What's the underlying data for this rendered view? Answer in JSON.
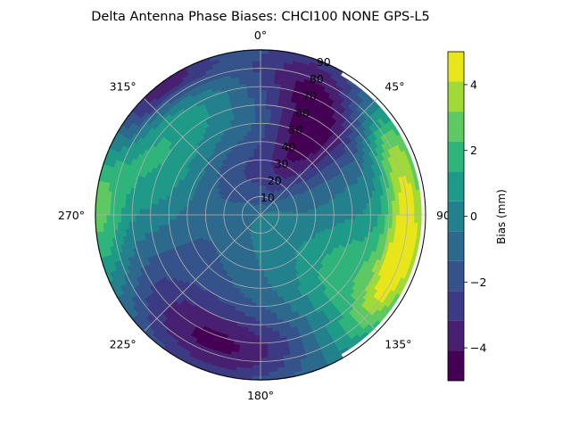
{
  "chart_data": {
    "type": "heatmap",
    "title": "Delta Antenna Phase Biases: CHCI100         NONE GPS-L5",
    "projection": "polar",
    "azimuth_direction": "clockwise",
    "zero_location": "top",
    "azimuth_ticks": [
      {
        "value": 0,
        "label": "0°"
      },
      {
        "value": 45,
        "label": "45°"
      },
      {
        "value": 90,
        "label": "90"
      },
      {
        "value": 135,
        "label": "135°"
      },
      {
        "value": 180,
        "label": "180°"
      },
      {
        "value": 225,
        "label": "225°"
      },
      {
        "value": 270,
        "label": "270°"
      },
      {
        "value": 315,
        "label": "315°"
      }
    ],
    "radial_ticks": [
      10,
      20,
      30,
      40,
      50,
      60,
      70,
      80,
      90
    ],
    "radial_range": [
      0,
      90
    ],
    "grid": true,
    "colorbar": {
      "label": "Bias (mm)",
      "range": [
        -5,
        5
      ],
      "ticks": [
        -4,
        -2,
        0,
        2,
        4
      ],
      "levels": [
        -5,
        -4.5,
        -4,
        -3.5,
        -3,
        -2.5,
        -2,
        -1.5,
        -1,
        -0.5,
        0,
        0.5,
        1,
        1.5,
        2,
        2.5,
        3,
        3.5,
        4,
        4.5,
        5
      ],
      "colormap": [
        "#440154",
        "#482071",
        "#3d3a84",
        "#35528b",
        "#2c698d",
        "#23818d",
        "#1f9a89",
        "#2fb47b",
        "#5ec962",
        "#a0da39",
        "#e8e51b"
      ]
    },
    "no_data_region": {
      "azimuth_start": 30,
      "azimuth_end": 150,
      "radius_min": 88
    },
    "bias_field": {
      "base": 0,
      "features": [
        {
          "az": 340,
          "r": 25,
          "value": -2.5,
          "width_az": 60,
          "width_r": 18
        },
        {
          "az": 32,
          "r": 55,
          "value": -4,
          "width_az": 18,
          "width_r": 22
        },
        {
          "az": 15,
          "r": 80,
          "value": -2.5,
          "width_az": 20,
          "width_r": 15
        },
        {
          "az": 320,
          "r": 88,
          "value": -4.5,
          "width_az": 18,
          "width_r": 8
        },
        {
          "az": 300,
          "r": 60,
          "value": 1.8,
          "width_az": 28,
          "width_r": 25
        },
        {
          "az": 270,
          "r": 88,
          "value": 2.5,
          "width_az": 20,
          "width_r": 10
        },
        {
          "az": 100,
          "r": 80,
          "value": 4.5,
          "width_az": 28,
          "width_r": 8
        },
        {
          "az": 125,
          "r": 60,
          "value": 2.2,
          "width_az": 22,
          "width_r": 20
        },
        {
          "az": 60,
          "r": 82,
          "value": 2.0,
          "width_az": 15,
          "width_r": 10
        },
        {
          "az": 195,
          "r": 75,
          "value": -3.5,
          "width_az": 30,
          "width_r": 15
        },
        {
          "az": 225,
          "r": 55,
          "value": -1.5,
          "width_az": 35,
          "width_r": 25
        }
      ]
    }
  }
}
